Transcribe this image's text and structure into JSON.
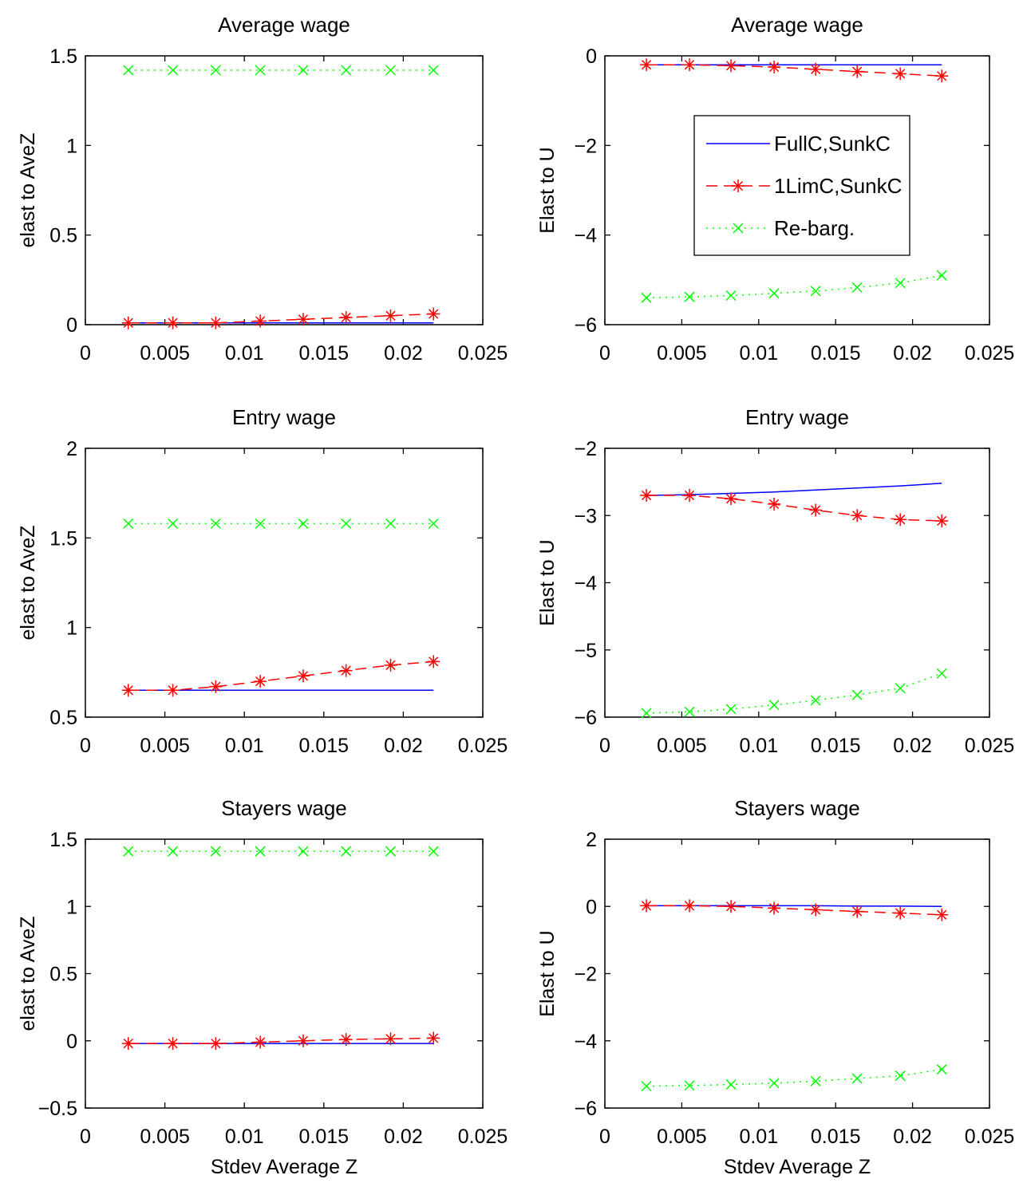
{
  "chart_data": [
    {
      "type": "line",
      "title": "Average wage",
      "xlabel": "",
      "ylabel": "elast to AveZ",
      "xlim": [
        0,
        0.025
      ],
      "ylim": [
        0,
        1.5
      ],
      "xticks": [
        "0",
        "0.005",
        "0.01",
        "0.015",
        "0.02",
        "0.025"
      ],
      "yticks": [
        "0",
        "0.5",
        "1",
        "1.5"
      ],
      "x": [
        0.0027,
        0.0055,
        0.0082,
        0.011,
        0.0137,
        0.0164,
        0.0192,
        0.0219
      ],
      "series": [
        {
          "name": "FullC,SunkC",
          "style": "solid",
          "marker": "",
          "color": "#0000ff",
          "values": [
            0.01,
            0.01,
            0.01,
            0.01,
            0.01,
            0.01,
            0.01,
            0.01
          ]
        },
        {
          "name": "1LimC,SunkC",
          "style": "dashed",
          "marker": "star",
          "color": "#ff0000",
          "values": [
            0.01,
            0.01,
            0.01,
            0.02,
            0.03,
            0.04,
            0.05,
            0.06
          ]
        },
        {
          "name": "Re-barg.",
          "style": "dotted",
          "marker": "x",
          "color": "#00ff00",
          "values": [
            1.42,
            1.42,
            1.42,
            1.42,
            1.42,
            1.42,
            1.42,
            1.42
          ]
        }
      ]
    },
    {
      "type": "line",
      "title": "Average wage",
      "xlabel": "",
      "ylabel": "Elast to U",
      "xlim": [
        0,
        0.025
      ],
      "ylim": [
        -6,
        0
      ],
      "xticks": [
        "0",
        "0.005",
        "0.01",
        "0.015",
        "0.02",
        "0.025"
      ],
      "yticks": [
        "−6",
        "−4",
        "−2",
        "0"
      ],
      "legend": "inside-top-right",
      "x": [
        0.0027,
        0.0055,
        0.0082,
        0.011,
        0.0137,
        0.0164,
        0.0192,
        0.0219
      ],
      "series": [
        {
          "name": "FullC,SunkC",
          "style": "solid",
          "marker": "",
          "color": "#0000ff",
          "values": [
            -0.2,
            -0.2,
            -0.2,
            -0.2,
            -0.2,
            -0.2,
            -0.2,
            -0.2
          ]
        },
        {
          "name": "1LimC,SunkC",
          "style": "dashed",
          "marker": "star",
          "color": "#ff0000",
          "values": [
            -0.2,
            -0.2,
            -0.22,
            -0.25,
            -0.3,
            -0.35,
            -0.4,
            -0.45
          ]
        },
        {
          "name": "Re-barg.",
          "style": "dotted",
          "marker": "x",
          "color": "#00ff00",
          "values": [
            -5.4,
            -5.38,
            -5.35,
            -5.3,
            -5.25,
            -5.17,
            -5.07,
            -4.9
          ]
        }
      ]
    },
    {
      "type": "line",
      "title": "Entry wage",
      "xlabel": "",
      "ylabel": "elast to AveZ",
      "xlim": [
        0,
        0.025
      ],
      "ylim": [
        0.5,
        2
      ],
      "xticks": [
        "0",
        "0.005",
        "0.01",
        "0.015",
        "0.02",
        "0.025"
      ],
      "yticks": [
        "0.5",
        "1",
        "1.5",
        "2"
      ],
      "x": [
        0.0027,
        0.0055,
        0.0082,
        0.011,
        0.0137,
        0.0164,
        0.0192,
        0.0219
      ],
      "series": [
        {
          "name": "FullC,SunkC",
          "style": "solid",
          "marker": "",
          "color": "#0000ff",
          "values": [
            0.65,
            0.65,
            0.65,
            0.65,
            0.65,
            0.65,
            0.65,
            0.65
          ]
        },
        {
          "name": "1LimC,SunkC",
          "style": "dashed",
          "marker": "star",
          "color": "#ff0000",
          "values": [
            0.65,
            0.65,
            0.67,
            0.7,
            0.73,
            0.76,
            0.79,
            0.81
          ]
        },
        {
          "name": "Re-barg.",
          "style": "dotted",
          "marker": "x",
          "color": "#00ff00",
          "values": [
            1.58,
            1.58,
            1.58,
            1.58,
            1.58,
            1.58,
            1.58,
            1.58
          ]
        }
      ]
    },
    {
      "type": "line",
      "title": "Entry wage",
      "xlabel": "",
      "ylabel": "Elast to U",
      "xlim": [
        0,
        0.025
      ],
      "ylim": [
        -6,
        -2
      ],
      "xticks": [
        "0",
        "0.005",
        "0.01",
        "0.015",
        "0.02",
        "0.025"
      ],
      "yticks": [
        "−6",
        "−5",
        "−4",
        "−3",
        "−2"
      ],
      "x": [
        0.0027,
        0.0055,
        0.0082,
        0.011,
        0.0137,
        0.0164,
        0.0192,
        0.0219
      ],
      "series": [
        {
          "name": "FullC,SunkC",
          "style": "solid",
          "marker": "",
          "color": "#0000ff",
          "values": [
            -2.7,
            -2.69,
            -2.67,
            -2.65,
            -2.62,
            -2.59,
            -2.56,
            -2.52
          ]
        },
        {
          "name": "1LimC,SunkC",
          "style": "dashed",
          "marker": "star",
          "color": "#ff0000",
          "values": [
            -2.7,
            -2.7,
            -2.75,
            -2.83,
            -2.92,
            -3.0,
            -3.06,
            -3.08
          ]
        },
        {
          "name": "Re-barg.",
          "style": "dotted",
          "marker": "x",
          "color": "#00ff00",
          "values": [
            -5.94,
            -5.92,
            -5.88,
            -5.82,
            -5.75,
            -5.67,
            -5.57,
            -5.35
          ]
        }
      ]
    },
    {
      "type": "line",
      "title": "Stayers wage",
      "xlabel": "Stdev Average Z",
      "ylabel": "elast to AveZ",
      "xlim": [
        0,
        0.025
      ],
      "ylim": [
        -0.5,
        1.5
      ],
      "xticks": [
        "0",
        "0.005",
        "0.01",
        "0.015",
        "0.02",
        "0.025"
      ],
      "yticks": [
        "−0.5",
        "0",
        "0.5",
        "1",
        "1.5"
      ],
      "x": [
        0.0027,
        0.0055,
        0.0082,
        0.011,
        0.0137,
        0.0164,
        0.0192,
        0.0219
      ],
      "series": [
        {
          "name": "FullC,SunkC",
          "style": "solid",
          "marker": "",
          "color": "#0000ff",
          "values": [
            -0.02,
            -0.02,
            -0.02,
            -0.02,
            -0.02,
            -0.02,
            -0.02,
            -0.02
          ]
        },
        {
          "name": "1LimC,SunkC",
          "style": "dashed",
          "marker": "star",
          "color": "#ff0000",
          "values": [
            -0.02,
            -0.02,
            -0.02,
            -0.01,
            0.0,
            0.01,
            0.015,
            0.02
          ]
        },
        {
          "name": "Re-barg.",
          "style": "dotted",
          "marker": "x",
          "color": "#00ff00",
          "values": [
            1.41,
            1.41,
            1.41,
            1.41,
            1.41,
            1.41,
            1.41,
            1.41
          ]
        }
      ]
    },
    {
      "type": "line",
      "title": "Stayers wage",
      "xlabel": "Stdev Average Z",
      "ylabel": "Elast to U",
      "xlim": [
        0,
        0.025
      ],
      "ylim": [
        -6,
        2
      ],
      "xticks": [
        "0",
        "0.005",
        "0.01",
        "0.015",
        "0.02",
        "0.025"
      ],
      "yticks": [
        "−6",
        "−4",
        "−2",
        "0",
        "2"
      ],
      "x": [
        0.0027,
        0.0055,
        0.0082,
        0.011,
        0.0137,
        0.0164,
        0.0192,
        0.0219
      ],
      "series": [
        {
          "name": "FullC,SunkC",
          "style": "solid",
          "marker": "",
          "color": "#0000ff",
          "values": [
            0.02,
            0.02,
            0.02,
            0.02,
            0.02,
            0.01,
            0.01,
            0.0
          ]
        },
        {
          "name": "1LimC,SunkC",
          "style": "dashed",
          "marker": "star",
          "color": "#ff0000",
          "values": [
            0.02,
            0.02,
            0.0,
            -0.05,
            -0.1,
            -0.15,
            -0.2,
            -0.25
          ]
        },
        {
          "name": "Re-barg.",
          "style": "dotted",
          "marker": "x",
          "color": "#00ff00",
          "values": [
            -5.35,
            -5.33,
            -5.3,
            -5.26,
            -5.2,
            -5.12,
            -5.04,
            -4.85
          ]
        }
      ]
    }
  ]
}
